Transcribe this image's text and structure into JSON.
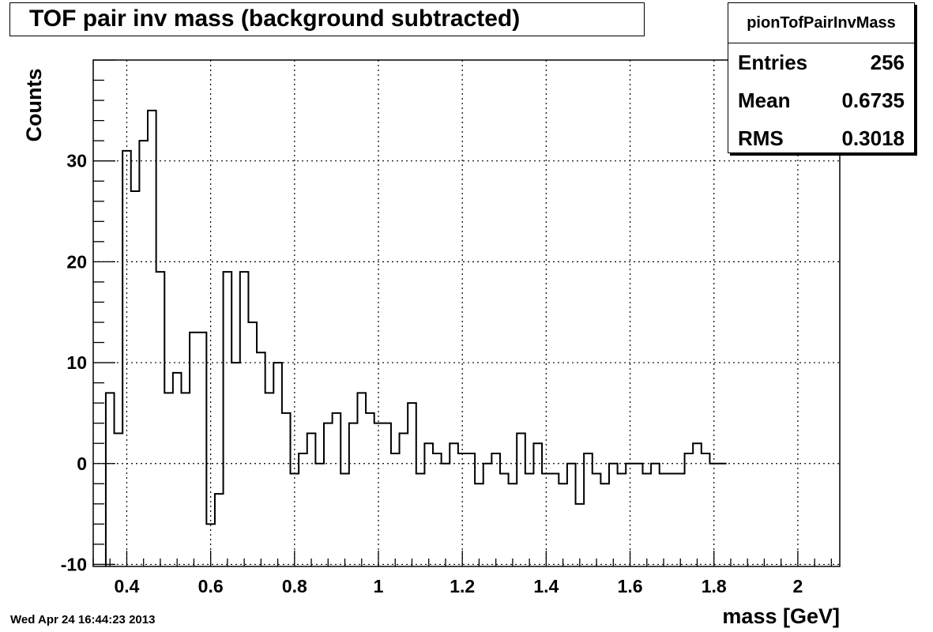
{
  "chart_data": {
    "type": "histogram",
    "title": "TOF pair inv mass (background subtracted)",
    "xlabel": "mass [GeV]",
    "ylabel": "Counts",
    "xlim": [
      0.32,
      2.1
    ],
    "ylim": [
      -10.2,
      40
    ],
    "x_ticks": [
      0.4,
      0.6,
      0.8,
      1,
      1.2,
      1.4,
      1.6,
      1.8,
      2
    ],
    "x_tick_labels": [
      "0.4",
      "0.6",
      "0.8",
      "1",
      "1.2",
      "1.4",
      "1.6",
      "1.8",
      "2"
    ],
    "y_ticks": [
      -10,
      0,
      10,
      20,
      30
    ],
    "y_tick_labels": [
      "-10",
      "0",
      "10",
      "20",
      "30"
    ],
    "grid": true,
    "bin_start": 0.35,
    "bin_width": 0.02,
    "values": [
      7,
      3,
      31,
      27,
      32,
      35,
      19,
      7,
      9,
      7,
      13,
      13,
      -6,
      -3,
      19,
      10,
      19,
      14,
      11,
      7,
      10,
      5,
      -1,
      1,
      3,
      0,
      4,
      5,
      -1,
      4,
      7,
      5,
      4,
      4,
      1,
      3,
      6,
      -1,
      2,
      1,
      0,
      2,
      1,
      1,
      -2,
      0,
      1,
      -1,
      -2,
      3,
      -1,
      2,
      -1,
      -1,
      -2,
      0,
      -4,
      1,
      -1,
      -2,
      0,
      -1,
      0,
      0,
      -1,
      0,
      -1,
      -1,
      -1,
      1,
      2,
      1,
      0,
      0
    ],
    "stats": {
      "name": "pionTofPairInvMass",
      "entries_label": "Entries",
      "entries": "256",
      "mean_label": "Mean",
      "mean": "0.6735",
      "rms_label": "RMS",
      "rms": "0.3018"
    },
    "colors": {
      "line": "#000000",
      "grid": "#000000",
      "background": "#ffffff"
    }
  },
  "datestamp": "Wed Apr 24 16:44:23 2013"
}
